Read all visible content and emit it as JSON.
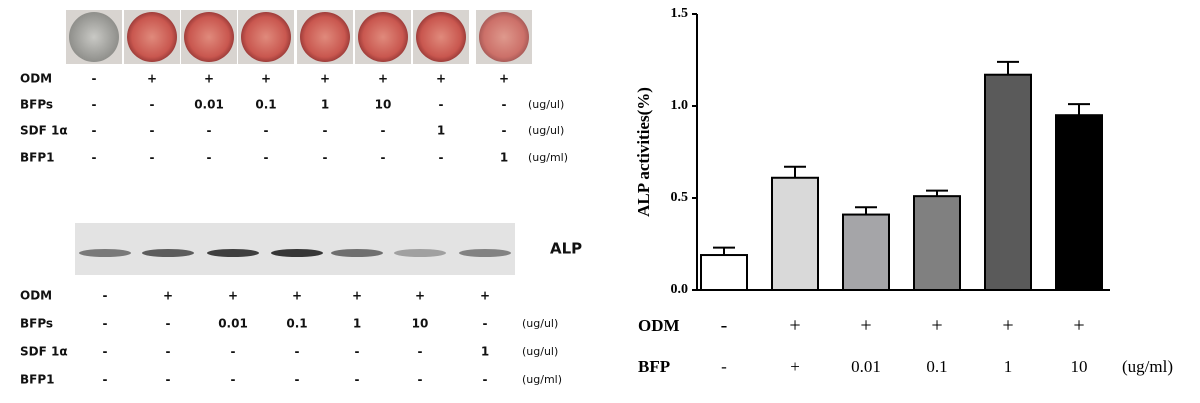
{
  "panel_a": {
    "rows": [
      {
        "name": "ODM",
        "labels": [
          "-",
          "+",
          "+",
          "+",
          "+",
          "+",
          "+",
          "+"
        ]
      },
      {
        "name": "BFPs",
        "labels": [
          "-",
          "-",
          "0.01",
          "0.1",
          "1",
          "10",
          "-",
          "-"
        ],
        "unit": "(ug/ul)"
      },
      {
        "name": "SDF 1α",
        "labels": [
          "-",
          "-",
          "-",
          "-",
          "-",
          "-",
          "1",
          "-"
        ],
        "unit": "(ug/ul)"
      },
      {
        "name": "BFP1",
        "labels": [
          "-",
          "-",
          "-",
          "-",
          "-",
          "-",
          "-",
          "1"
        ],
        "unit": "(ug/ml)"
      }
    ]
  },
  "panel_b": {
    "blot_label": "ALP",
    "rows": [
      {
        "name": "ODM",
        "labels": [
          "-",
          "+",
          "+",
          "+",
          "+",
          "+",
          "+"
        ]
      },
      {
        "name": "BFPs",
        "labels": [
          "-",
          "-",
          "0.01",
          "0.1",
          "1",
          "10",
          "-"
        ],
        "unit": "(ug/ul)"
      },
      {
        "name": "SDF 1α",
        "labels": [
          "-",
          "-",
          "-",
          "-",
          "-",
          "-",
          "1"
        ],
        "unit": "(ug/ul)"
      },
      {
        "name": "BFP1",
        "labels": [
          "-",
          "-",
          "-",
          "-",
          "-",
          "-",
          "-"
        ],
        "unit": "(ug/ml)"
      }
    ]
  },
  "chart_data": {
    "type": "bar",
    "y_label": "ALP activities(%)",
    "categories": [
      "-",
      "+",
      "0.01",
      "0.1",
      "1",
      "10"
    ],
    "category_label": "BFP",
    "category_unit": "(ug/ml)",
    "category_rows": [
      {
        "name": "ODM",
        "labels": [
          "-",
          "+",
          "+",
          "+",
          "+",
          "+"
        ]
      }
    ],
    "values": [
      0.19,
      0.61,
      0.41,
      0.51,
      1.17,
      0.95
    ],
    "errors": [
      0.04,
      0.06,
      0.04,
      0.03,
      0.07,
      0.06
    ],
    "colors": [
      "#ffffff",
      "#d9d9d9",
      "#a5a5a8",
      "#808080",
      "#5a5a5a",
      "#000000"
    ],
    "ylim": [
      0,
      1.5
    ],
    "yticks": [
      {
        "value": 0,
        "label": "0.0"
      },
      {
        "value": 0.5,
        "label": "0.5"
      },
      {
        "value": 1,
        "label": "1.0"
      },
      {
        "value": 1.5,
        "label": "1.5"
      }
    ]
  }
}
